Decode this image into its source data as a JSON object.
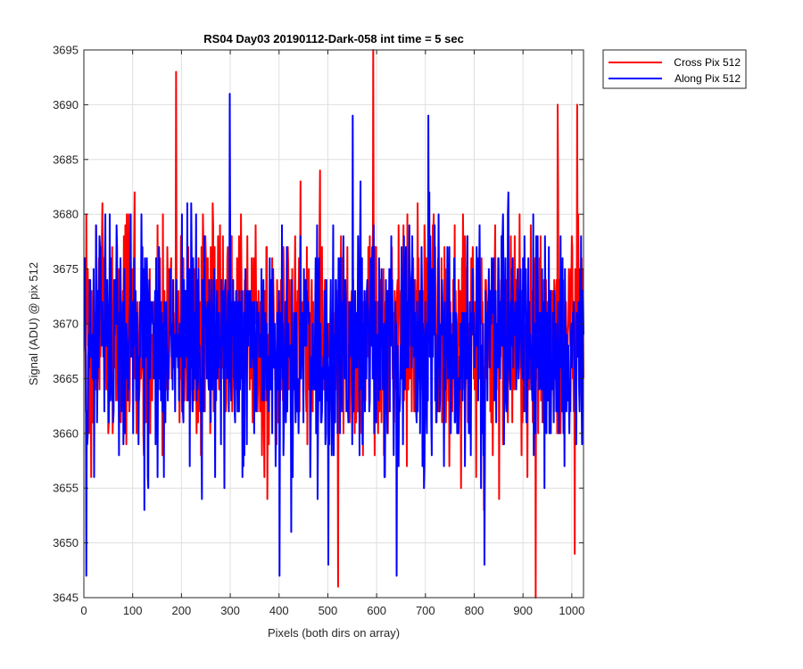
{
  "chart_data": {
    "type": "line",
    "title": "RS04 Day03 20190112-Dark-058 int time = 5 sec",
    "xlabel": "Pixels (both dirs on array)",
    "ylabel": "Signal (ADU) @ pix 512",
    "xlim": [
      0,
      1024
    ],
    "ylim": [
      3645,
      3695
    ],
    "xticks": [
      0,
      100,
      200,
      300,
      400,
      500,
      600,
      700,
      800,
      900,
      1000
    ],
    "yticks": [
      3645,
      3650,
      3655,
      3660,
      3665,
      3670,
      3675,
      3680,
      3685,
      3690,
      3695
    ],
    "grid": true,
    "legend_position": "outside-top-right",
    "n_points": 1024,
    "series": [
      {
        "name": "Cross Pix 512",
        "color": "#ff0000",
        "mean": 3669,
        "spread": 5.5,
        "extremes": [
          [
            188,
            3693
          ],
          [
            592,
            3695
          ],
          [
            520,
            3646
          ],
          [
            925,
            3645
          ],
          [
            1005,
            3649
          ],
          [
            970,
            3690
          ],
          [
            1010,
            3690
          ]
        ]
      },
      {
        "name": "Along Pix 512",
        "color": "#0000ff",
        "mean": 3668,
        "spread": 5.5,
        "extremes": [
          [
            4,
            3647
          ],
          [
            298,
            3691
          ],
          [
            400,
            3647
          ],
          [
            500,
            3648
          ],
          [
            550,
            3689
          ],
          [
            640,
            3647
          ],
          [
            705,
            3689
          ],
          [
            820,
            3648
          ]
        ]
      }
    ]
  }
}
